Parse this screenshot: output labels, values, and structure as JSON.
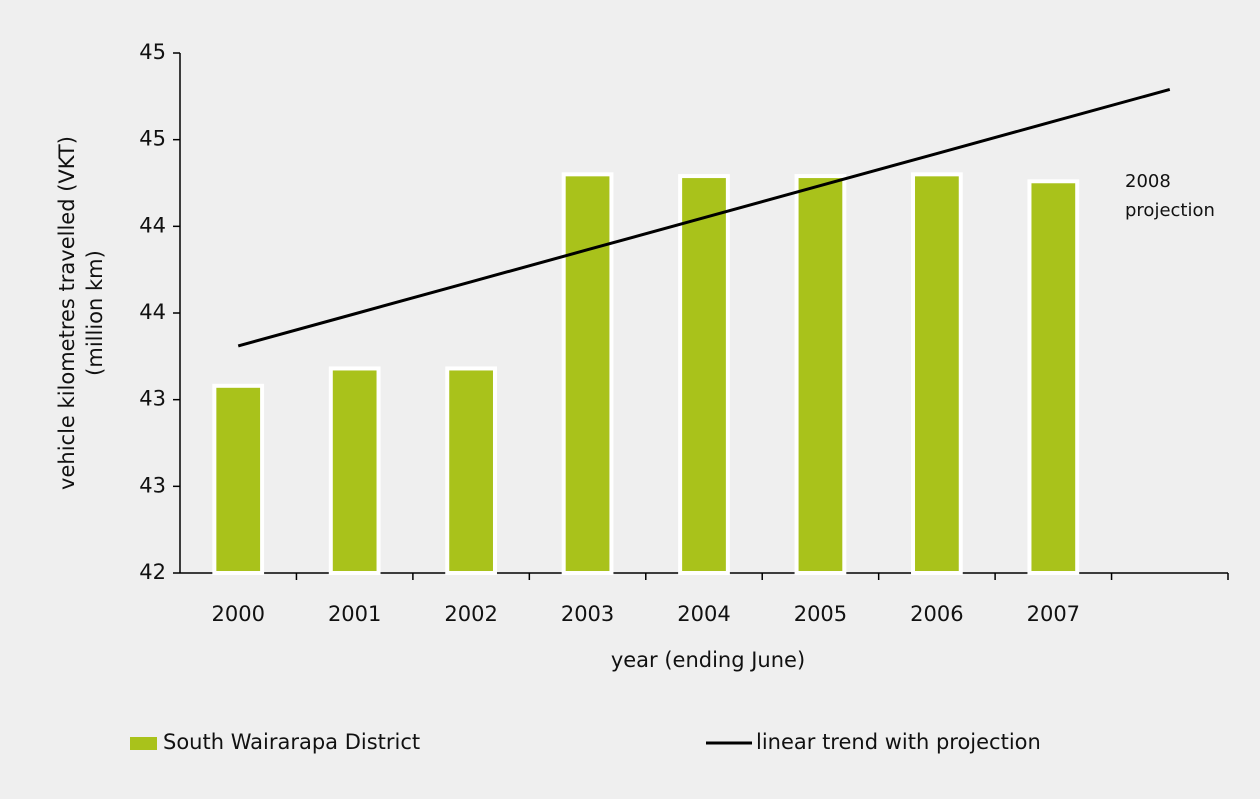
{
  "chart_data": {
    "type": "bar",
    "x_label": "year (ending June)",
    "y_label": [
      "vehicle kilometres travelled (VKT)",
      "(million km)"
    ],
    "annotation": [
      "2008",
      "projection"
    ],
    "categories": [
      "2000",
      "2001",
      "2002",
      "2003",
      "2004",
      "2005",
      "2006",
      "2007",
      null
    ],
    "series": [
      {
        "name": "South Wairarapa District",
        "type": "bar",
        "color": "#a9c21b",
        "values": [
          43.08,
          43.18,
          43.18,
          44.3,
          44.29,
          44.29,
          44.3,
          44.26,
          null
        ]
      },
      {
        "name": "linear trend with projection",
        "type": "line",
        "color": "#000000",
        "values": [
          43.31,
          43.495,
          43.68,
          43.865,
          44.05,
          44.235,
          44.42,
          44.605,
          44.79
        ]
      }
    ],
    "ylim": [
      42,
      45
    ],
    "yticks": [
      42,
      {
        "value": 42.5,
        "label": "43"
      },
      43,
      {
        "value": 43.5,
        "label": "44"
      },
      44,
      {
        "value": 44.5,
        "label": "45"
      },
      45
    ],
    "legend": "bottom"
  }
}
